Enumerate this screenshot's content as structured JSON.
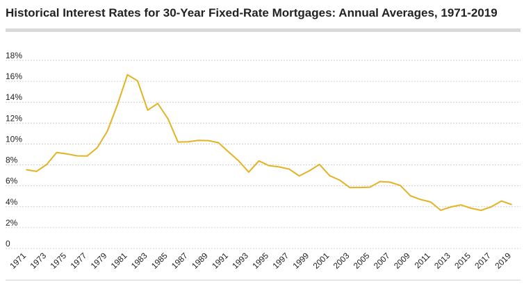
{
  "chart_data": {
    "type": "line",
    "title": "Historical Interest Rates for 30-Year Fixed-Rate Mortgages: Annual Averages, 1971-2019",
    "xlabel": "",
    "ylabel": "",
    "ylim": [
      0,
      18
    ],
    "y_ticks": [
      0,
      2,
      4,
      6,
      8,
      10,
      12,
      14,
      16,
      18
    ],
    "y_tick_labels": [
      "0",
      "2%",
      "4%",
      "6%",
      "8%",
      "10%",
      "12%",
      "14%",
      "16%",
      "18%"
    ],
    "x_tick_labels": [
      "1971",
      "1973",
      "1975",
      "1977",
      "1979",
      "1981",
      "1983",
      "1985",
      "1987",
      "1989",
      "1991",
      "1993",
      "1995",
      "1997",
      "1999",
      "2001",
      "2003",
      "2005",
      "2007",
      "2009",
      "2011",
      "2013",
      "2015",
      "2017",
      "2019"
    ],
    "grid": true,
    "x": [
      1971,
      1972,
      1973,
      1974,
      1975,
      1976,
      1977,
      1978,
      1979,
      1980,
      1981,
      1982,
      1983,
      1984,
      1985,
      1986,
      1987,
      1988,
      1989,
      1990,
      1991,
      1992,
      1993,
      1994,
      1995,
      1996,
      1997,
      1998,
      1999,
      2000,
      2001,
      2002,
      2003,
      2004,
      2005,
      2006,
      2007,
      2008,
      2009,
      2010,
      2011,
      2012,
      2013,
      2014,
      2015,
      2016,
      2017,
      2018,
      2019
    ],
    "series": [
      {
        "color": "#e3b322",
        "values": [
          7.54,
          7.38,
          8.04,
          9.19,
          9.05,
          8.87,
          8.85,
          9.64,
          11.2,
          13.74,
          16.63,
          16.04,
          13.24,
          13.88,
          12.43,
          10.19,
          10.21,
          10.34,
          10.32,
          10.13,
          9.25,
          8.39,
          7.31,
          8.38,
          7.93,
          7.81,
          7.6,
          6.94,
          7.44,
          8.05,
          6.97,
          6.54,
          5.83,
          5.84,
          5.87,
          6.41,
          6.34,
          6.03,
          5.04,
          4.69,
          4.45,
          3.66,
          3.98,
          4.17,
          3.85,
          3.65,
          3.99,
          4.54,
          4.21
        ]
      }
    ]
  }
}
